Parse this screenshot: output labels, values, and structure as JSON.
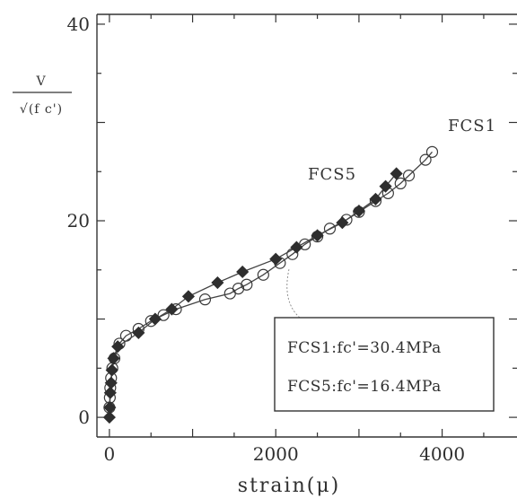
{
  "chart_data": {
    "type": "line",
    "xlabel": "strain(μ)",
    "ylabel": "V / √(f c')",
    "xlim": [
      -150,
      4900
    ],
    "ylim": [
      -2,
      41
    ],
    "xticks": [
      0,
      2000,
      4000
    ],
    "yticks": [
      0,
      20,
      40
    ],
    "grid": false,
    "annotations": [
      "FCS1",
      "FCS5"
    ],
    "legend_box": [
      "FCS1:fc'=30.4MPa",
      "FCS5:fc'=16.4MPa"
    ],
    "series": [
      {
        "name": "FCS1",
        "marker": "open-circle",
        "x": [
          0,
          5,
          10,
          20,
          35,
          60,
          120,
          200,
          350,
          500,
          650,
          800,
          1150,
          1450,
          1550,
          1650,
          1850,
          2050,
          2200,
          2350,
          2500,
          2650,
          2850,
          3000,
          3200,
          3350,
          3500,
          3600,
          3800,
          3880
        ],
        "y": [
          1,
          2,
          3,
          4,
          5,
          6,
          7.5,
          8.3,
          9,
          9.8,
          10.4,
          11,
          12,
          12.6,
          13.1,
          13.5,
          14.5,
          15.7,
          16.6,
          17.6,
          18.4,
          19.2,
          20.1,
          20.9,
          22,
          22.8,
          23.8,
          24.6,
          26.2,
          27
        ]
      },
      {
        "name": "FCS5",
        "marker": "filled-diamond",
        "x": [
          0,
          5,
          10,
          20,
          30,
          50,
          100,
          350,
          550,
          750,
          950,
          1300,
          1600,
          2000,
          2250,
          2500,
          2800,
          3000,
          3200,
          3320,
          3450
        ],
        "y": [
          0,
          1,
          2.5,
          3.5,
          4.8,
          6,
          7.2,
          8.6,
          10,
          11,
          12.3,
          13.7,
          14.8,
          16.1,
          17.3,
          18.5,
          19.8,
          21,
          22.2,
          23.5,
          24.8
        ]
      }
    ]
  }
}
